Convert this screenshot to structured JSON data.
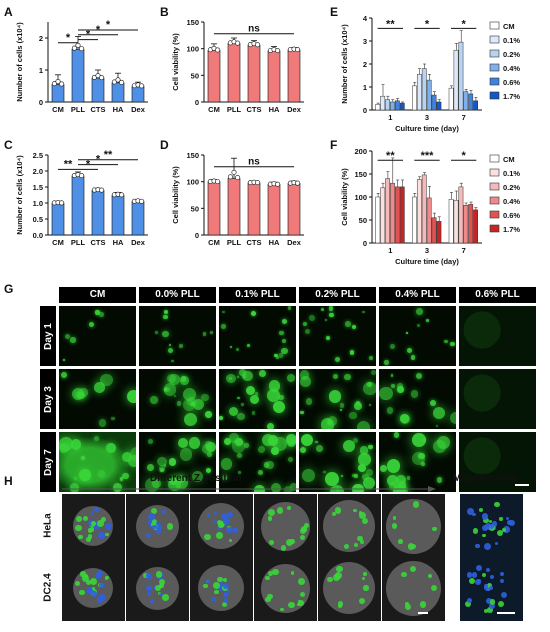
{
  "panels": {
    "A": "A",
    "B": "B",
    "C": "C",
    "D": "D",
    "E": "E",
    "F": "F",
    "G": "G",
    "H": "H"
  },
  "chart_data": [
    {
      "id": "A",
      "type": "bar",
      "categories": [
        "CM",
        "PLL",
        "CTS",
        "HA",
        "Dex"
      ],
      "values": [
        0.55,
        1.65,
        0.75,
        0.6,
        0.5
      ],
      "errors": [
        0.3,
        0.4,
        0.25,
        0.3,
        0.12
      ],
      "ylabel": "Number of cells (x10⁴)",
      "ylim": [
        0,
        2.5
      ],
      "yticks": [
        "0",
        "1",
        "2"
      ],
      "ytickvals": [
        0,
        1,
        2
      ],
      "color": "#4f8fe6",
      "sig": [
        {
          "from": 0,
          "to": 1,
          "label": "*",
          "level": 1.85
        },
        {
          "from": 1,
          "to": 2,
          "label": "*",
          "level": 1.95
        },
        {
          "from": 1,
          "to": 3,
          "label": "*",
          "level": 2.1
        },
        {
          "from": 1,
          "to": 4,
          "label": "*",
          "level": 2.25
        }
      ]
    },
    {
      "id": "B",
      "type": "bar",
      "categories": [
        "CM",
        "PLL",
        "CTS",
        "HA",
        "Dex"
      ],
      "values": [
        97,
        110,
        107,
        96,
        98
      ],
      "errors": [
        12,
        10,
        8,
        8,
        4
      ],
      "ylabel": "Cell viability (%)",
      "ylim": [
        0,
        150
      ],
      "yticks": [
        "0",
        "50",
        "100",
        "150"
      ],
      "ytickvals": [
        0,
        50,
        100,
        150
      ],
      "color": "#f07a7a",
      "sig": [
        {
          "from": 0,
          "to": 4,
          "label": "ns",
          "level": 128
        }
      ]
    },
    {
      "id": "C",
      "type": "bar",
      "categories": [
        "CM",
        "PLL",
        "CTS",
        "HA",
        "Dex"
      ],
      "values": [
        1.0,
        1.85,
        1.4,
        1.25,
        1.05
      ],
      "errors": [
        0.05,
        0.12,
        0.06,
        0.08,
        0.06
      ],
      "ylabel": "Number of cells (x10⁴)",
      "ylim": [
        0,
        2.5
      ],
      "yticks": [
        "0.0",
        "0.5",
        "1.0",
        "1.5",
        "2.0",
        "2.5"
      ],
      "ytickvals": [
        0,
        0.5,
        1,
        1.5,
        2,
        2.5
      ],
      "color": "#4f8fe6",
      "sig": [
        {
          "from": 0,
          "to": 1,
          "label": "**",
          "level": 2.05
        },
        {
          "from": 1,
          "to": 2,
          "label": "*",
          "level": 2.05
        },
        {
          "from": 1,
          "to": 3,
          "label": "*",
          "level": 2.2
        },
        {
          "from": 1,
          "to": 4,
          "label": "**",
          "level": 2.35
        }
      ]
    },
    {
      "id": "D",
      "type": "bar",
      "categories": [
        "CM",
        "PLL",
        "CTS",
        "HA",
        "Dex"
      ],
      "values": [
        100,
        106,
        98,
        95,
        97
      ],
      "errors": [
        4,
        38,
        3,
        4,
        4
      ],
      "ylabel": "Cell viability (%)",
      "ylim": [
        0,
        150
      ],
      "yticks": [
        "0",
        "50",
        "100",
        "150"
      ],
      "ytickvals": [
        0,
        50,
        100,
        150
      ],
      "color": "#f07a7a",
      "sig": [
        {
          "from": 0,
          "to": 4,
          "label": "ns",
          "level": 128
        }
      ]
    },
    {
      "id": "E",
      "type": "bar",
      "categories": [
        "1",
        "3",
        "7"
      ],
      "series": [
        {
          "name": "CM",
          "values": [
            0.25,
            1.05,
            0.95
          ],
          "errors": [
            0.05,
            0.15,
            0.1
          ],
          "color": "#ffffff"
        },
        {
          "name": "0.1%",
          "values": [
            0.6,
            1.55,
            2.6
          ],
          "errors": [
            0.5,
            0.25,
            0.3
          ],
          "color": "#dde9f8"
        },
        {
          "name": "0.2%",
          "values": [
            0.45,
            1.8,
            2.95
          ],
          "errors": [
            0.15,
            0.2,
            0.5
          ],
          "color": "#b8d3f2"
        },
        {
          "name": "0.4%",
          "values": [
            0.35,
            1.3,
            0.8
          ],
          "errors": [
            0.1,
            0.25,
            0.1
          ],
          "color": "#7fb0ea"
        },
        {
          "name": "0.6%",
          "values": [
            0.4,
            0.65,
            0.7
          ],
          "errors": [
            0.1,
            0.15,
            0.15
          ],
          "color": "#3f83de"
        },
        {
          "name": "1.7%",
          "values": [
            0.3,
            0.35,
            0.4
          ],
          "errors": [
            0.05,
            0.1,
            0.15
          ],
          "color": "#1358c4"
        }
      ],
      "xlabel": "Culture time (day)",
      "ylabel": "Number of cells (x10⁴)",
      "ylim": [
        0,
        4
      ],
      "yticks": [
        "0",
        "1",
        "2",
        "3",
        "4"
      ],
      "ytickvals": [
        0,
        1,
        2,
        3,
        4
      ],
      "sig": [
        {
          "group": 0,
          "label": "**",
          "level": 3.55
        },
        {
          "group": 1,
          "label": "*",
          "level": 3.55
        },
        {
          "group": 2,
          "label": "*",
          "level": 3.55
        }
      ]
    },
    {
      "id": "F",
      "type": "bar",
      "categories": [
        "1",
        "3",
        "7"
      ],
      "series": [
        {
          "name": "CM",
          "values": [
            100,
            100,
            95
          ],
          "errors": [
            8,
            8,
            15
          ],
          "color": "#ffffff"
        },
        {
          "name": "0.1%",
          "values": [
            120,
            138,
            93
          ],
          "errors": [
            10,
            6,
            20
          ],
          "color": "#fbe0e0"
        },
        {
          "name": "0.2%",
          "values": [
            140,
            148,
            122
          ],
          "errors": [
            15,
            5,
            8
          ],
          "color": "#f6b9b9"
        },
        {
          "name": "0.4%",
          "values": [
            130,
            98,
            82
          ],
          "errors": [
            55,
            25,
            5
          ],
          "color": "#ef8a8a"
        },
        {
          "name": "0.6%",
          "values": [
            122,
            55,
            84
          ],
          "errors": [
            15,
            10,
            5
          ],
          "color": "#e05353"
        },
        {
          "name": "1.7%",
          "values": [
            122,
            47,
            72
          ],
          "errors": [
            15,
            10,
            5
          ],
          "color": "#c42626"
        }
      ],
      "xlabel": "Culture time (day)",
      "ylabel": "Cell viability (%)",
      "ylim": [
        0,
        200
      ],
      "yticks": [
        "0",
        "50",
        "100",
        "150",
        "200"
      ],
      "ytickvals": [
        0,
        50,
        100,
        150,
        200
      ],
      "sig": [
        {
          "group": 0,
          "label": "**",
          "level": 180
        },
        {
          "group": 1,
          "label": "***",
          "level": 180
        },
        {
          "group": 2,
          "label": "*",
          "level": 180
        }
      ]
    }
  ],
  "G": {
    "columns": [
      "CM",
      "0.0% PLL",
      "0.1% PLL",
      "0.2% PLL",
      "0.4% PLL",
      "0.6% PLL"
    ],
    "rows": [
      "Day 1",
      "Day 3",
      "Day 7"
    ]
  },
  "H": {
    "arrow_label": "Different Z position",
    "magnification_label": "Magnification",
    "rows": [
      "HeLa",
      "DC2.4"
    ]
  },
  "colors": {
    "fluorescence": "#39d639",
    "nucleus": "#2f5fe0",
    "blue_bar": "#4f8fe6",
    "red_bar": "#f07a7a"
  }
}
